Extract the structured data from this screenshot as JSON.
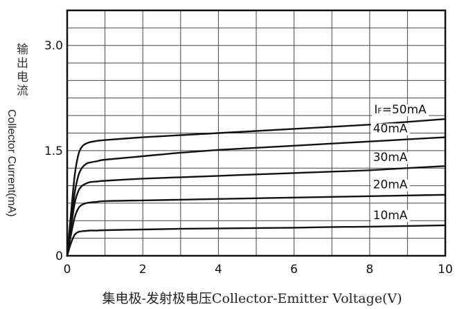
{
  "chart_data": {
    "type": "line",
    "title": "",
    "xlabel": "集电极-发射极电压Collector-Emitter Voltage(V)",
    "ylabel_cn": "输出电流",
    "ylabel_en": "Collector Current(mA)",
    "xlim": [
      0,
      10
    ],
    "ylim": [
      0,
      3.5
    ],
    "x_ticks": [
      0,
      2,
      4,
      6,
      8,
      10
    ],
    "x_tick_labels": [
      "0",
      "2",
      "4",
      "6",
      "8",
      "10"
    ],
    "y_ticks": [
      0,
      1.5,
      3.0
    ],
    "y_tick_labels": [
      "0",
      "1.5",
      "3.0"
    ],
    "grid": true,
    "series": [
      {
        "name": "IF=50mA",
        "label_parts": [
          "I",
          "F",
          "=50mA"
        ],
        "x": [
          0,
          0.1,
          0.2,
          0.3,
          0.4,
          0.5,
          0.6,
          0.8,
          1,
          2,
          3,
          4,
          5,
          6,
          7,
          8,
          9,
          10
        ],
        "y": [
          0,
          0.6,
          1.15,
          1.45,
          1.56,
          1.6,
          1.62,
          1.64,
          1.65,
          1.69,
          1.72,
          1.75,
          1.78,
          1.81,
          1.84,
          1.87,
          1.91,
          1.95
        ]
      },
      {
        "name": "40mA",
        "x": [
          0,
          0.1,
          0.2,
          0.3,
          0.4,
          0.5,
          0.6,
          0.8,
          1,
          2,
          3,
          4,
          5,
          6,
          7,
          8,
          9,
          10
        ],
        "y": [
          0,
          0.45,
          0.9,
          1.15,
          1.26,
          1.31,
          1.33,
          1.35,
          1.37,
          1.42,
          1.47,
          1.51,
          1.54,
          1.57,
          1.6,
          1.63,
          1.66,
          1.69
        ]
      },
      {
        "name": "30mA",
        "x": [
          0,
          0.1,
          0.2,
          0.3,
          0.4,
          0.5,
          0.6,
          0.8,
          1,
          2,
          3,
          4,
          5,
          6,
          7,
          8,
          9,
          10
        ],
        "y": [
          0,
          0.4,
          0.75,
          0.93,
          1.0,
          1.03,
          1.05,
          1.06,
          1.07,
          1.1,
          1.12,
          1.14,
          1.16,
          1.18,
          1.2,
          1.22,
          1.25,
          1.28
        ]
      },
      {
        "name": "20mA",
        "x": [
          0,
          0.1,
          0.2,
          0.3,
          0.4,
          0.5,
          0.6,
          0.8,
          1,
          2,
          3,
          4,
          5,
          6,
          7,
          8,
          9,
          10
        ],
        "y": [
          0,
          0.3,
          0.55,
          0.68,
          0.73,
          0.75,
          0.76,
          0.77,
          0.78,
          0.79,
          0.8,
          0.81,
          0.82,
          0.83,
          0.84,
          0.85,
          0.86,
          0.87
        ]
      },
      {
        "name": "10mA",
        "x": [
          0,
          0.1,
          0.2,
          0.3,
          0.4,
          0.5,
          0.6,
          0.8,
          1,
          2,
          3,
          4,
          5,
          6,
          7,
          8,
          9,
          10
        ],
        "y": [
          0,
          0.18,
          0.3,
          0.34,
          0.35,
          0.355,
          0.36,
          0.36,
          0.365,
          0.375,
          0.385,
          0.39,
          0.395,
          0.4,
          0.41,
          0.415,
          0.425,
          0.435
        ]
      }
    ]
  }
}
